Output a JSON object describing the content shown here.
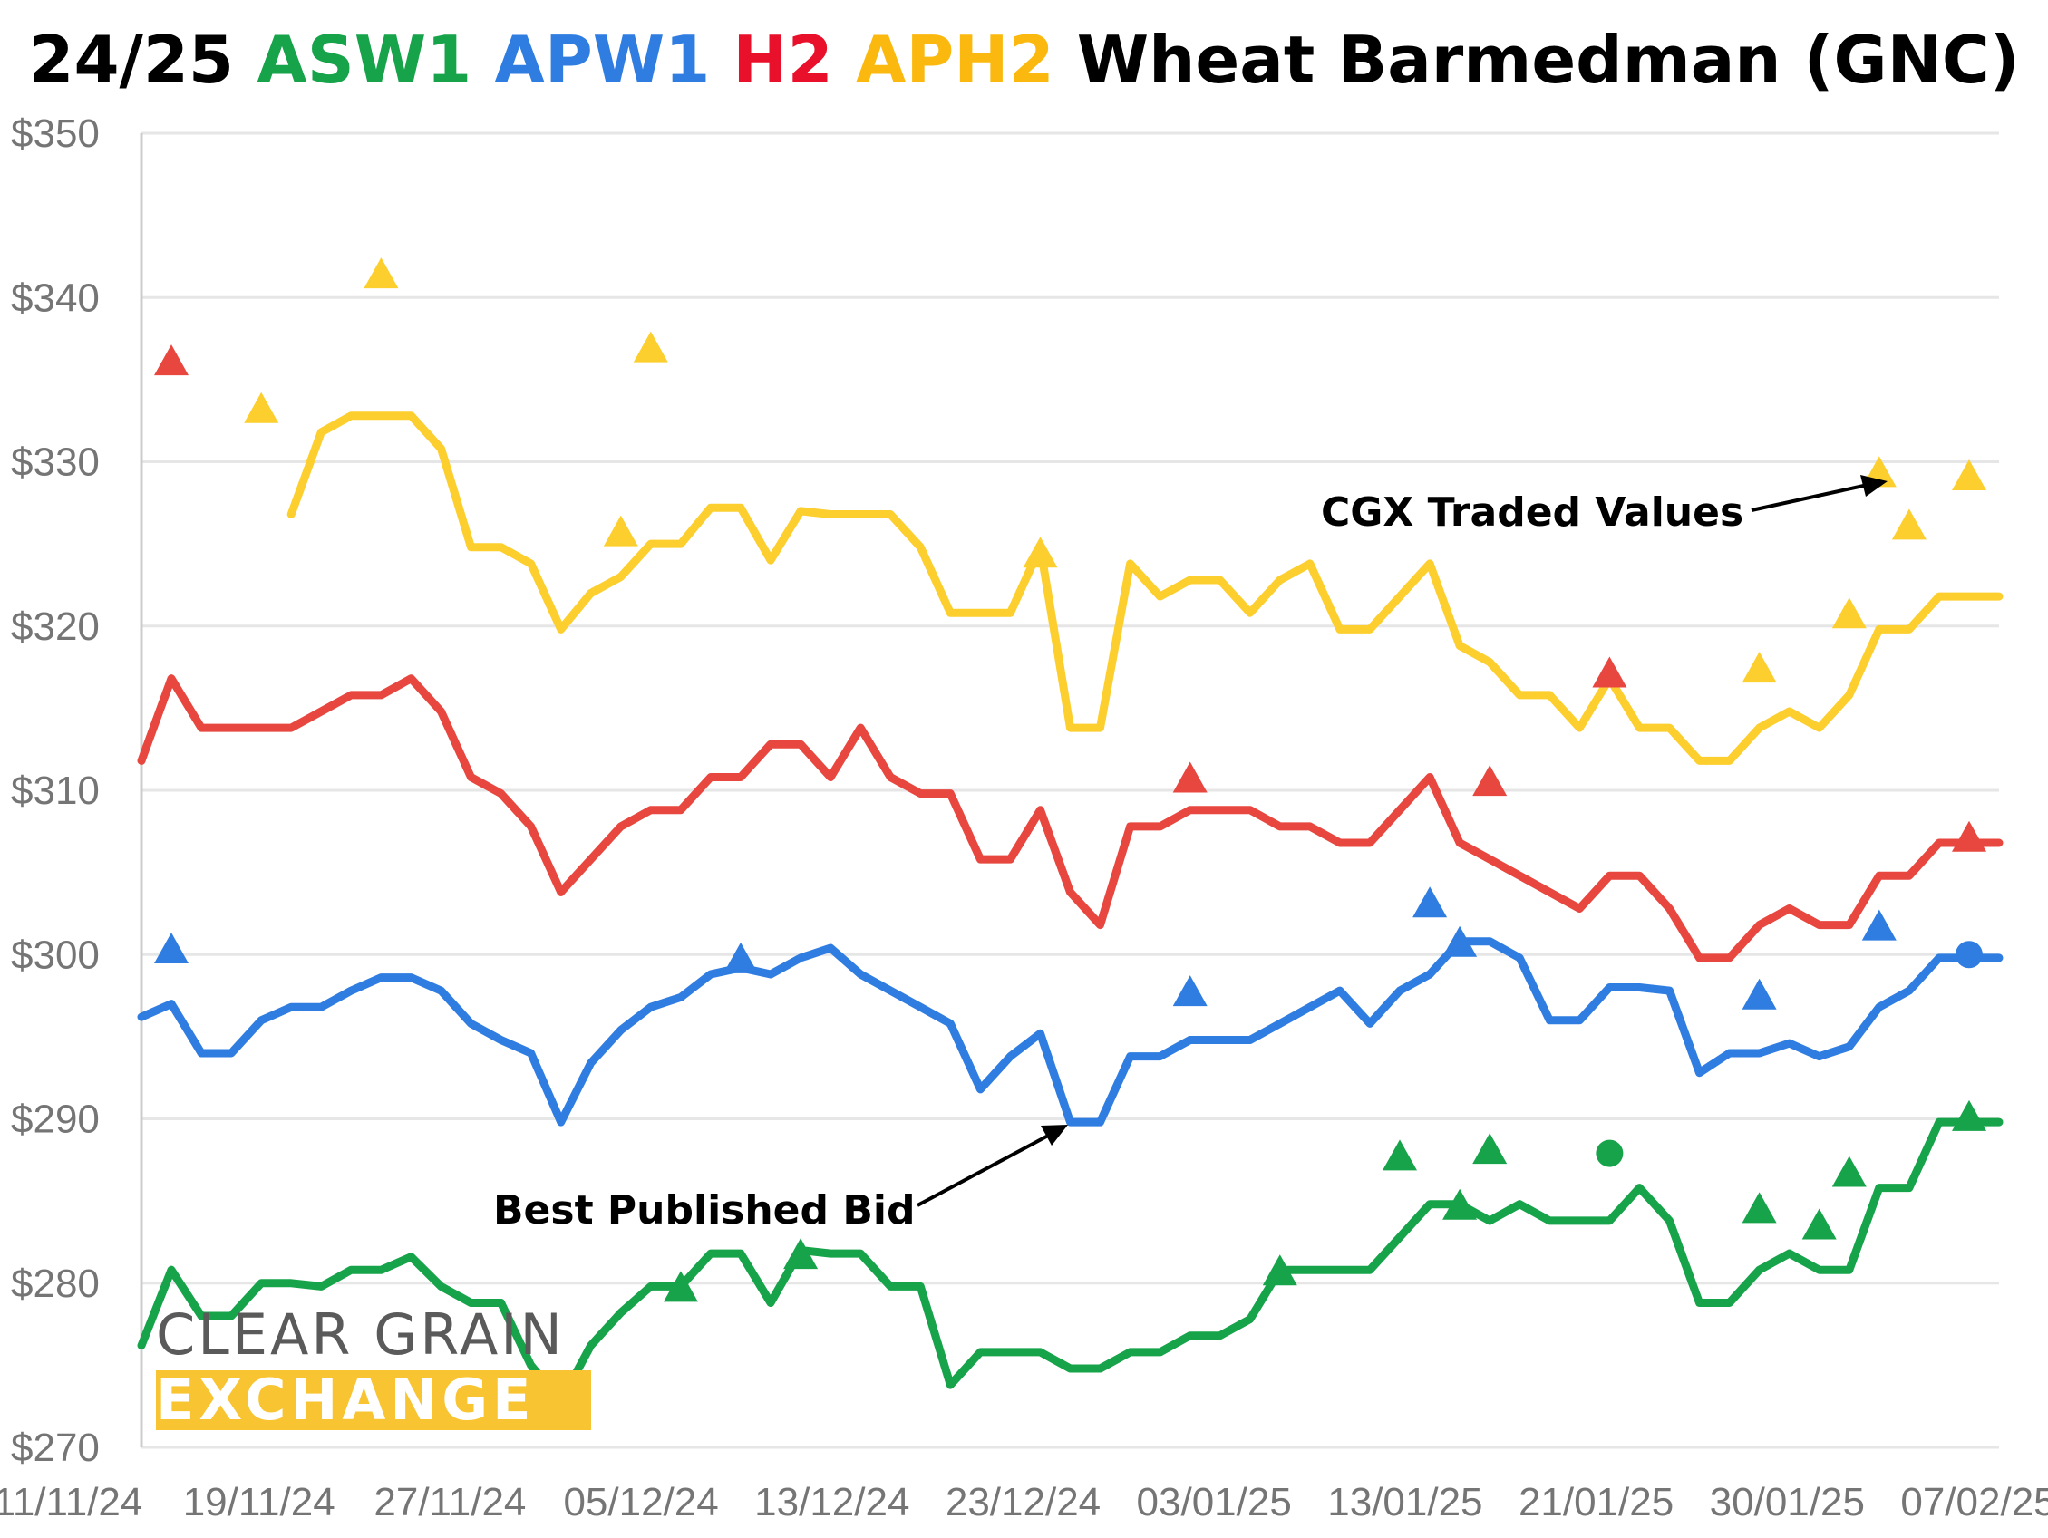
{
  "title": {
    "prefix": "24/25",
    "asw1": "ASW1",
    "apw1": "APW1",
    "h2": "H2",
    "aph2": "APH2",
    "suffix": "Wheat Barmedman (GNC)"
  },
  "colors": {
    "ASW1": "#16a34a",
    "APW1": "#2f7de1",
    "H2": "#e8473f",
    "APH2": "#fccf2f",
    "title_black": "#000000",
    "grid": "#e6e6e6",
    "logo_gray": "#5a5a5a",
    "logo_yellow": "#f8c432"
  },
  "logo": {
    "line1": "CLEAR GRAIN",
    "line2": "EXCHANGE"
  },
  "annotations": {
    "traded": "CGX Traded Values",
    "bid": "Best Published Bid"
  },
  "chart_data": {
    "type": "line",
    "x_ticks": [
      "11/11/24",
      "19/11/24",
      "27/11/24",
      "05/12/24",
      "13/12/24",
      "23/12/24",
      "03/01/25",
      "13/01/25",
      "21/01/25",
      "30/01/25",
      "07/02/25"
    ],
    "ylim": [
      270,
      350
    ],
    "y_ticks": [
      "$270",
      "$280",
      "$290",
      "$300",
      "$310",
      "$320",
      "$330",
      "$340",
      "$350"
    ],
    "grid": true,
    "legend": "none",
    "series": [
      {
        "name": "APH2",
        "color": "#fccf2f",
        "x": [
          5,
          6,
          7,
          8,
          9,
          10,
          11,
          12,
          13,
          14,
          15,
          16,
          17,
          18,
          19,
          20,
          21,
          22,
          23,
          24,
          25,
          26,
          27,
          28,
          29,
          30,
          31,
          32,
          33,
          34,
          35,
          36,
          37,
          38,
          39,
          40,
          41,
          42,
          43,
          44,
          45,
          46,
          47,
          48,
          49,
          50,
          51,
          52,
          53,
          54,
          55,
          56,
          57,
          58,
          59,
          60,
          61,
          62
        ],
        "values": [
          326.8,
          331.8,
          332.8,
          332.8,
          332.8,
          330.8,
          324.8,
          324.8,
          323.8,
          319.8,
          322.0,
          323.0,
          325.0,
          325.0,
          327.2,
          327.2,
          324.0,
          327.0,
          326.8,
          326.8,
          326.8,
          324.8,
          320.8,
          320.8,
          320.8,
          324.8,
          313.8,
          313.8,
          323.8,
          321.8,
          322.8,
          322.8,
          320.8,
          322.8,
          323.8,
          319.8,
          319.8,
          321.8,
          323.8,
          318.8,
          317.8,
          315.8,
          315.8,
          313.8,
          316.8,
          313.8,
          313.8,
          311.8,
          311.8,
          313.8,
          314.8,
          313.8,
          315.8,
          319.8,
          319.8,
          321.8,
          321.8,
          321.8
        ]
      },
      {
        "name": "H2",
        "color": "#e8473f",
        "x": [
          0,
          1,
          2,
          3,
          4,
          5,
          6,
          7,
          8,
          9,
          10,
          11,
          12,
          13,
          14,
          15,
          16,
          17,
          18,
          19,
          20,
          21,
          22,
          23,
          24,
          25,
          26,
          27,
          28,
          29,
          30,
          31,
          32,
          33,
          34,
          35,
          36,
          37,
          38,
          39,
          40,
          41,
          42,
          43,
          44,
          45,
          46,
          47,
          48,
          49,
          50,
          51,
          52,
          53,
          54,
          55,
          56,
          57,
          58,
          59,
          60,
          61,
          62
        ],
        "values": [
          311.8,
          316.8,
          313.8,
          313.8,
          313.8,
          313.8,
          314.8,
          315.8,
          315.8,
          316.8,
          314.8,
          310.8,
          309.8,
          307.8,
          303.8,
          305.8,
          307.8,
          308.8,
          308.8,
          310.8,
          310.8,
          312.8,
          312.8,
          310.8,
          313.8,
          310.8,
          309.8,
          309.8,
          305.8,
          305.8,
          308.8,
          303.8,
          301.8,
          307.8,
          307.8,
          308.8,
          308.8,
          308.8,
          307.8,
          307.8,
          306.8,
          306.8,
          308.8,
          310.8,
          306.8,
          305.8,
          304.8,
          303.8,
          302.8,
          304.8,
          304.8,
          302.8,
          299.8,
          299.8,
          301.8,
          302.8,
          301.8,
          301.8,
          304.8,
          304.8,
          306.8,
          306.8,
          306.8
        ]
      },
      {
        "name": "APW1",
        "color": "#2f7de1",
        "x": [
          0,
          1,
          2,
          3,
          4,
          5,
          6,
          7,
          8,
          9,
          10,
          11,
          12,
          13,
          14,
          15,
          16,
          17,
          18,
          19,
          20,
          21,
          22,
          23,
          24,
          25,
          26,
          27,
          28,
          29,
          30,
          31,
          32,
          33,
          34,
          35,
          36,
          37,
          38,
          39,
          40,
          41,
          42,
          43,
          44,
          45,
          46,
          47,
          48,
          49,
          50,
          51,
          52,
          53,
          54,
          55,
          56,
          57,
          58,
          59,
          60,
          61,
          62
        ],
        "values": [
          296.2,
          297.0,
          294.0,
          294.0,
          296.0,
          296.8,
          296.8,
          297.8,
          298.6,
          298.6,
          297.8,
          295.8,
          294.8,
          294.0,
          289.8,
          293.4,
          295.4,
          296.8,
          297.4,
          298.8,
          299.2,
          298.8,
          299.8,
          300.4,
          298.8,
          297.8,
          296.8,
          295.8,
          291.8,
          293.8,
          295.2,
          289.8,
          289.8,
          293.8,
          293.8,
          294.8,
          294.8,
          294.8,
          295.8,
          296.8,
          297.8,
          295.8,
          297.8,
          298.8,
          300.8,
          300.8,
          299.8,
          296.0,
          296.0,
          298.0,
          298.0,
          297.8,
          292.8,
          294.0,
          294.0,
          294.6,
          293.8,
          294.4,
          296.8,
          297.8,
          299.8,
          299.8,
          299.8
        ]
      },
      {
        "name": "ASW1",
        "color": "#16a34a",
        "x": [
          0,
          1,
          2,
          3,
          4,
          5,
          6,
          7,
          8,
          9,
          10,
          11,
          12,
          13,
          14,
          15,
          16,
          17,
          18,
          19,
          20,
          21,
          22,
          23,
          24,
          25,
          26,
          27,
          28,
          29,
          30,
          31,
          32,
          33,
          34,
          35,
          36,
          37,
          38,
          39,
          40,
          41,
          42,
          43,
          44,
          45,
          46,
          47,
          48,
          49,
          50,
          51,
          52,
          53,
          54,
          55,
          56,
          57,
          58,
          59,
          60,
          61,
          62
        ],
        "values": [
          276.2,
          280.8,
          278.0,
          278.0,
          280.0,
          280.0,
          279.8,
          280.8,
          280.8,
          281.6,
          279.8,
          278.8,
          278.8,
          275.0,
          272.8,
          276.2,
          278.2,
          279.8,
          279.8,
          281.8,
          281.8,
          278.8,
          282.0,
          281.8,
          281.8,
          279.8,
          279.8,
          273.8,
          275.8,
          275.8,
          275.8,
          274.8,
          274.8,
          275.8,
          275.8,
          276.8,
          276.8,
          277.8,
          280.8,
          280.8,
          280.8,
          280.8,
          282.8,
          284.8,
          284.8,
          283.8,
          284.8,
          283.8,
          283.8,
          283.8,
          285.8,
          283.8,
          278.8,
          278.8,
          280.8,
          281.8,
          280.8,
          280.8,
          285.8,
          285.8,
          289.8,
          289.8,
          289.8
        ]
      }
    ],
    "traded_values": [
      {
        "series": "APH2",
        "x": 4,
        "y": 333.3,
        "marker": "triangle"
      },
      {
        "series": "APH2",
        "x": 8,
        "y": 341.5,
        "marker": "triangle"
      },
      {
        "series": "APH2",
        "x": 16,
        "y": 325.8,
        "marker": "triangle"
      },
      {
        "series": "APH2",
        "x": 17,
        "y": 337.0,
        "marker": "triangle"
      },
      {
        "series": "APH2",
        "x": 30,
        "y": 324.5,
        "marker": "triangle"
      },
      {
        "series": "APH2",
        "x": 54,
        "y": 317.5,
        "marker": "triangle"
      },
      {
        "series": "APH2",
        "x": 57,
        "y": 320.8,
        "marker": "triangle"
      },
      {
        "series": "APH2",
        "x": 58,
        "y": 329.4,
        "marker": "triangle"
      },
      {
        "series": "APH2",
        "x": 59,
        "y": 326.2,
        "marker": "triangle"
      },
      {
        "series": "APH2",
        "x": 61,
        "y": 329.2,
        "marker": "triangle"
      },
      {
        "series": "H2",
        "x": 1,
        "y": 336.2,
        "marker": "triangle"
      },
      {
        "series": "H2",
        "x": 35,
        "y": 310.8,
        "marker": "triangle"
      },
      {
        "series": "H2",
        "x": 45,
        "y": 310.6,
        "marker": "triangle"
      },
      {
        "series": "H2",
        "x": 49,
        "y": 317.2,
        "marker": "triangle"
      },
      {
        "series": "H2",
        "x": 61,
        "y": 307.2,
        "marker": "triangle"
      },
      {
        "series": "APW1",
        "x": 1,
        "y": 300.4,
        "marker": "triangle"
      },
      {
        "series": "APW1",
        "x": 20,
        "y": 299.8,
        "marker": "triangle"
      },
      {
        "series": "APW1",
        "x": 35,
        "y": 297.8,
        "marker": "triangle"
      },
      {
        "series": "APW1",
        "x": 43,
        "y": 303.2,
        "marker": "triangle"
      },
      {
        "series": "APW1",
        "x": 44,
        "y": 300.8,
        "marker": "triangle"
      },
      {
        "series": "APW1",
        "x": 54,
        "y": 297.6,
        "marker": "triangle"
      },
      {
        "series": "APW1",
        "x": 58,
        "y": 301.8,
        "marker": "triangle"
      },
      {
        "series": "APW1",
        "x": 61,
        "y": 300.0,
        "marker": "circle"
      },
      {
        "series": "ASW1",
        "x": 18,
        "y": 279.8,
        "marker": "triangle"
      },
      {
        "series": "ASW1",
        "x": 22,
        "y": 281.8,
        "marker": "triangle"
      },
      {
        "series": "ASW1",
        "x": 38,
        "y": 280.8,
        "marker": "triangle"
      },
      {
        "series": "ASW1",
        "x": 42,
        "y": 287.8,
        "marker": "triangle"
      },
      {
        "series": "ASW1",
        "x": 44,
        "y": 284.8,
        "marker": "triangle"
      },
      {
        "series": "ASW1",
        "x": 45,
        "y": 288.2,
        "marker": "triangle"
      },
      {
        "series": "ASW1",
        "x": 49,
        "y": 287.9,
        "marker": "circle"
      },
      {
        "series": "ASW1",
        "x": 54,
        "y": 284.6,
        "marker": "triangle"
      },
      {
        "series": "ASW1",
        "x": 56,
        "y": 283.6,
        "marker": "triangle"
      },
      {
        "series": "ASW1",
        "x": 57,
        "y": 286.8,
        "marker": "triangle"
      },
      {
        "series": "ASW1",
        "x": 61,
        "y": 290.2,
        "marker": "triangle"
      }
    ]
  }
}
